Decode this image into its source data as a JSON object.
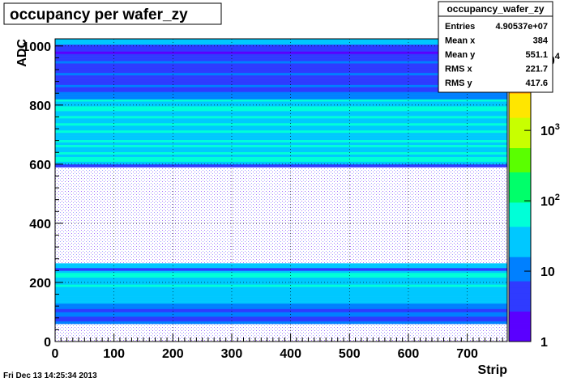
{
  "title": "occupancy per wafer_zy",
  "timestamp": "Fri Dec 13 14:25:34 2013",
  "stats_box": {
    "name": "occupancy_wafer_zy",
    "rows": [
      {
        "label": "Entries",
        "value": "4.90537e+07"
      },
      {
        "label": "Mean x",
        "value": "384"
      },
      {
        "label": "Mean y",
        "value": "551.1"
      },
      {
        "label": "RMS x",
        "value": "221.7"
      },
      {
        "label": "RMS y",
        "value": "417.6"
      }
    ]
  },
  "chart_data": {
    "type": "heatmap",
    "title": "occupancy per wafer_zy",
    "xlabel": "Strip",
    "ylabel": "ADC",
    "xlim": [
      0,
      768
    ],
    "ylim": [
      0,
      1024
    ],
    "x_ticks": [
      0,
      100,
      200,
      300,
      400,
      500,
      600,
      700
    ],
    "y_ticks": [
      0,
      200,
      400,
      600,
      800,
      1000
    ],
    "grid": true,
    "z_scale": "log",
    "z_range": [
      1,
      20000
    ],
    "z_ticks": [
      {
        "value": 1,
        "label": "1"
      },
      {
        "value": 10,
        "label": "10"
      },
      {
        "value": 100,
        "label": "10",
        "exp": "2"
      },
      {
        "value": 1000,
        "label": "10",
        "exp": "3"
      },
      {
        "value": 10000,
        "label": "10",
        "exp": "4"
      }
    ],
    "palette": [
      "#5a00ff",
      "#2f3bff",
      "#0080ff",
      "#00c8ff",
      "#00ffd8",
      "#00ff6a",
      "#5aff00",
      "#c8ff00",
      "#ffe600",
      "#ff9900",
      "#ff3300"
    ],
    "bands": [
      {
        "y": [
          0,
          60
        ],
        "level": 0.3
      },
      {
        "y": [
          60,
          100
        ],
        "level": 1.6
      },
      {
        "y": [
          100,
          120
        ],
        "level": 1.9
      },
      {
        "y": [
          120,
          145
        ],
        "level": 2.6
      },
      {
        "y": [
          145,
          240
        ],
        "level": 3.3
      },
      {
        "y": [
          240,
          265
        ],
        "level": 2.1
      },
      {
        "y": [
          265,
          590
        ],
        "level": 0.15
      },
      {
        "y": [
          590,
          600
        ],
        "level": 1.0
      },
      {
        "y": [
          600,
          820
        ],
        "level": 3.5
      },
      {
        "y": [
          820,
          1005
        ],
        "level": 1.2
      },
      {
        "y": [
          1005,
          1024
        ],
        "level": 2.2
      }
    ]
  }
}
